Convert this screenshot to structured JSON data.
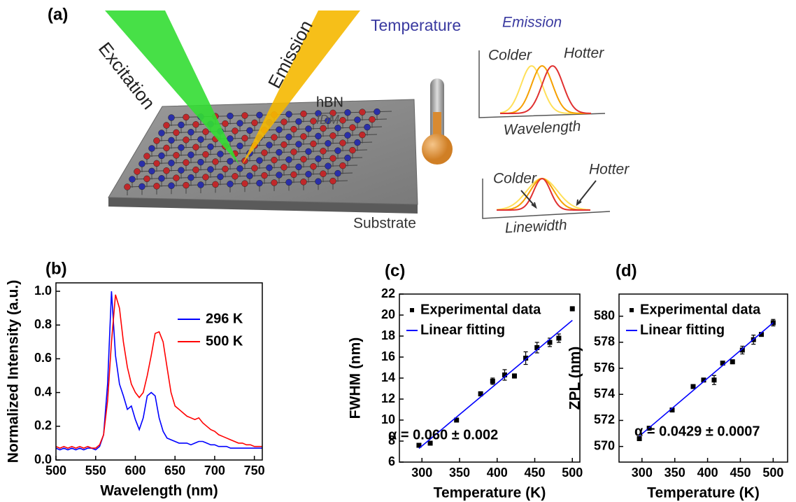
{
  "schematic": {
    "panel_label": "(a)",
    "excitation": "Excitation",
    "emission_beam": "Emission",
    "material": "hBN",
    "material_sub": "IDM",
    "substrate": "Substrate",
    "temperature": "Temperature",
    "emission": "Emission",
    "top_plot": {
      "colder": "Colder",
      "hotter": "Hotter",
      "axis": "Wavelength"
    },
    "bottom_plot": {
      "colder": "Colder",
      "hotter": "Hotter",
      "axis": "Linewidth"
    }
  },
  "chart_data": [
    {
      "type": "line",
      "panel_label": "(b)",
      "x_label": "Wavelength (nm)",
      "y_label": "Normalized Intensity (a.u.)",
      "x": [
        500,
        505,
        510,
        515,
        520,
        525,
        530,
        535,
        540,
        545,
        550,
        555,
        560,
        565,
        570,
        575,
        580,
        585,
        590,
        595,
        600,
        605,
        610,
        615,
        620,
        625,
        630,
        635,
        640,
        645,
        650,
        655,
        660,
        665,
        670,
        675,
        680,
        685,
        690,
        695,
        700,
        705,
        710,
        715,
        720,
        725,
        730,
        735,
        740,
        745,
        750,
        755,
        760
      ],
      "series": [
        {
          "name": "296 K",
          "color": "#0000ff",
          "values": [
            0.07,
            0.06,
            0.07,
            0.06,
            0.07,
            0.06,
            0.07,
            0.06,
            0.07,
            0.07,
            0.06,
            0.08,
            0.15,
            0.45,
            1.0,
            0.62,
            0.45,
            0.38,
            0.3,
            0.32,
            0.24,
            0.18,
            0.25,
            0.38,
            0.4,
            0.38,
            0.25,
            0.17,
            0.13,
            0.12,
            0.11,
            0.1,
            0.1,
            0.1,
            0.09,
            0.1,
            0.11,
            0.11,
            0.1,
            0.09,
            0.09,
            0.08,
            0.08,
            0.08,
            0.07,
            0.07,
            0.07,
            0.07,
            0.07,
            0.07,
            0.07,
            0.07,
            0.07
          ]
        },
        {
          "name": "500 K",
          "color": "#ff0000",
          "values": [
            0.08,
            0.07,
            0.08,
            0.07,
            0.08,
            0.07,
            0.08,
            0.07,
            0.08,
            0.07,
            0.07,
            0.09,
            0.15,
            0.35,
            0.7,
            0.98,
            0.9,
            0.7,
            0.55,
            0.45,
            0.4,
            0.37,
            0.4,
            0.5,
            0.62,
            0.75,
            0.76,
            0.7,
            0.55,
            0.4,
            0.32,
            0.3,
            0.28,
            0.26,
            0.25,
            0.24,
            0.25,
            0.22,
            0.2,
            0.18,
            0.17,
            0.15,
            0.14,
            0.13,
            0.12,
            0.11,
            0.1,
            0.1,
            0.09,
            0.09,
            0.08,
            0.08,
            0.08
          ]
        }
      ],
      "xlim": [
        500,
        760
      ],
      "ylim": [
        0,
        1.05
      ],
      "xticks": [
        500,
        550,
        600,
        650,
        700,
        750
      ],
      "yticks": [
        {
          "value": 0,
          "label": "0.0"
        },
        0.2,
        0.4,
        0.6,
        0.8,
        {
          "value": 1,
          "label": "1.0"
        }
      ],
      "legend": "upper right"
    },
    {
      "type": "scatter",
      "panel_label": "(c)",
      "x_label": "Temperature (K)",
      "y_label": "FWHM (nm)",
      "series": [
        {
          "name": "Experimental data",
          "style": "markers",
          "color": "#000000",
          "x": [
            296,
            311,
            346,
            378,
            394,
            410,
            423,
            438,
            453,
            470,
            482,
            500
          ],
          "values": [
            7.6,
            7.8,
            10.0,
            12.5,
            13.7,
            14.3,
            14.2,
            15.9,
            16.9,
            17.4,
            17.8,
            20.6
          ],
          "errors": [
            0.1,
            0.1,
            0.1,
            0.2,
            0.3,
            0.5,
            0.2,
            0.6,
            0.5,
            0.4,
            0.4,
            0.2
          ]
        },
        {
          "name": "Linear fitting",
          "style": "line",
          "color": "#0000ff",
          "x": [
            296,
            500
          ],
          "values": [
            7.3,
            19.5
          ]
        }
      ],
      "annotation": "α = 0.060 ± 0.002",
      "xlim": [
        270,
        510
      ],
      "ylim": [
        6,
        22
      ],
      "xticks": [
        300,
        350,
        400,
        450,
        500
      ],
      "yticks": [
        6,
        8,
        10,
        12,
        14,
        16,
        18,
        20,
        22
      ],
      "legend": "upper left"
    },
    {
      "type": "scatter",
      "panel_label": "(d)",
      "x_label": "Temperature (K)",
      "y_label": "ZPL (nm)",
      "series": [
        {
          "name": "Experimental data",
          "style": "markers",
          "color": "#000000",
          "x": [
            296,
            311,
            346,
            378,
            394,
            410,
            423,
            438,
            453,
            470,
            482,
            500
          ],
          "values": [
            570.6,
            571.4,
            572.8,
            574.6,
            575.1,
            575.1,
            576.4,
            576.5,
            577.4,
            578.2,
            578.6,
            579.5
          ],
          "errors": [
            0.05,
            0.05,
            0.05,
            0.05,
            0.05,
            0.35,
            0.05,
            0.15,
            0.3,
            0.35,
            0.1,
            0.25
          ]
        },
        {
          "name": "Linear fitting",
          "style": "line",
          "color": "#0000ff",
          "x": [
            296,
            500
          ],
          "values": [
            570.8,
            579.5
          ]
        }
      ],
      "annotation": "α = 0.0429 ± 0.0007",
      "xlim": [
        265,
        522
      ],
      "ylim": [
        568.8,
        581.7
      ],
      "xticks": [
        300,
        350,
        400,
        450,
        500
      ],
      "yticks": [
        570,
        572,
        574,
        576,
        578,
        580
      ],
      "legend": "upper left"
    }
  ]
}
